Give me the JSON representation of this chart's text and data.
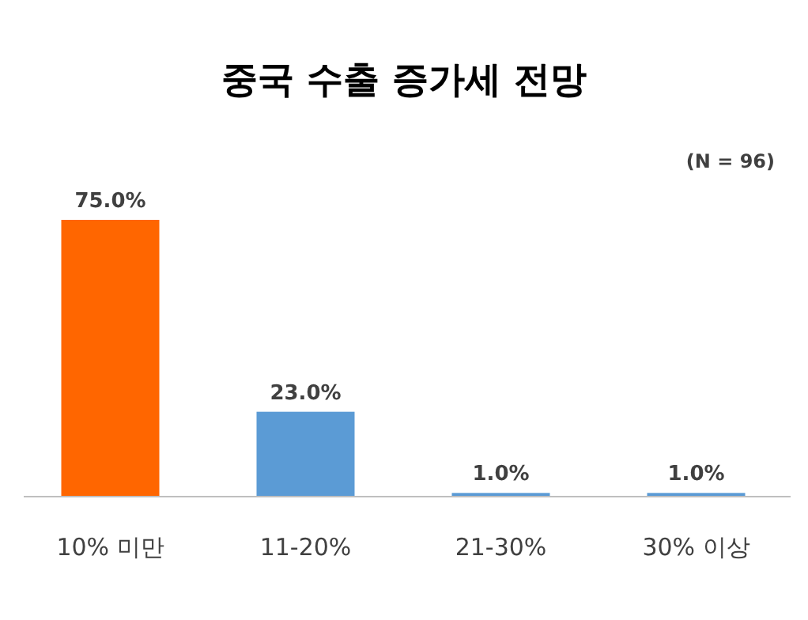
{
  "chart_data": {
    "type": "bar",
    "title": "중국 수출 증가세 전망",
    "categories": [
      "10% 미만",
      "11-20%",
      "21-30%",
      "30% 이상"
    ],
    "values": [
      75,
      23,
      1,
      1
    ],
    "colors": [
      "#ff6600",
      "#5b9bd5",
      "#5b9bd5",
      "#5b9bd5"
    ],
    "value_labels": [
      "75.0%",
      "23.0%",
      "1.0%",
      "1.0%"
    ],
    "annotations": [
      "(N = 96)"
    ]
  }
}
